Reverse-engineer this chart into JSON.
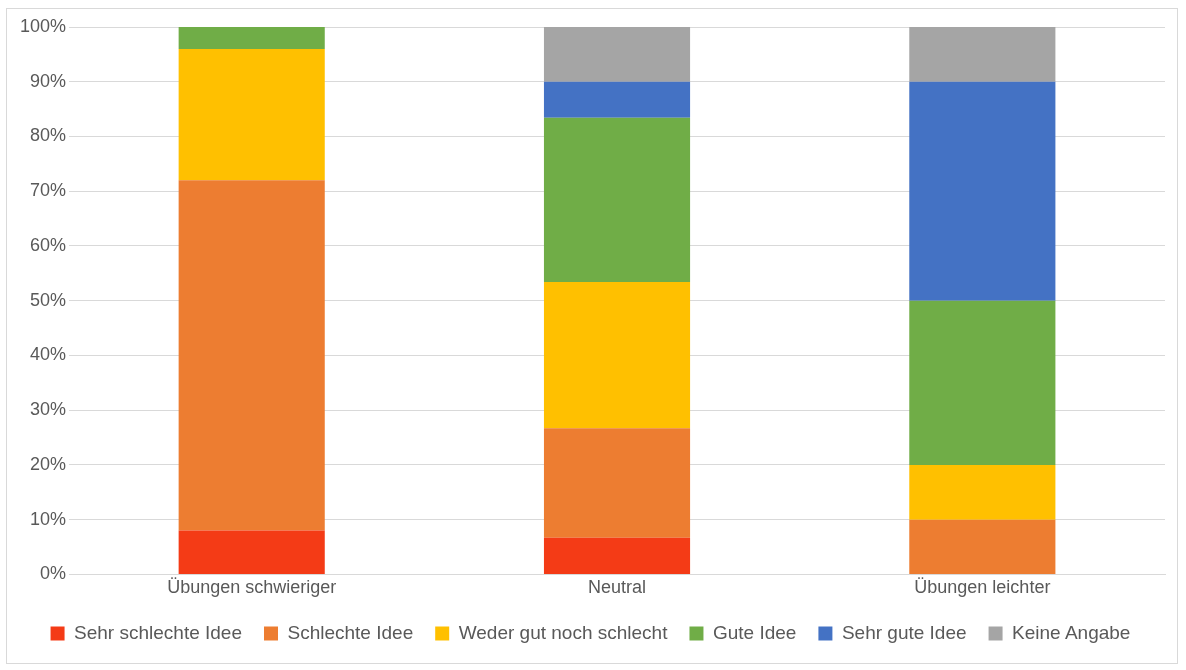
{
  "chart_data": {
    "type": "bar",
    "stacked": true,
    "categories": [
      "Übungen schwieriger",
      "Neutral",
      "Übungen leichter"
    ],
    "series": [
      {
        "name": "Sehr schlechte Idee",
        "color": "#f43b16",
        "values": [
          8,
          6.7,
          0
        ]
      },
      {
        "name": "Schlechte Idee",
        "color": "#ed7d31",
        "values": [
          64,
          20,
          10
        ]
      },
      {
        "name": "Weder gut noch schlecht",
        "color": "#ffc000",
        "values": [
          24,
          26.7,
          10
        ]
      },
      {
        "name": "Gute Idee",
        "color": "#70ad47",
        "values": [
          4,
          30,
          30
        ]
      },
      {
        "name": "Sehr gute Idee",
        "color": "#4472c4",
        "values": [
          0,
          6.6,
          40
        ]
      },
      {
        "name": "Keine Angabe",
        "color": "#a5a5a5",
        "values": [
          0,
          10,
          10
        ]
      }
    ],
    "ylim": [
      0,
      100
    ],
    "yticks": [
      {
        "value": 0,
        "label": "0%"
      },
      {
        "value": 10,
        "label": "10%"
      },
      {
        "value": 20,
        "label": "20%"
      },
      {
        "value": 30,
        "label": "30%"
      },
      {
        "value": 40,
        "label": "40%"
      },
      {
        "value": 50,
        "label": "50%"
      },
      {
        "value": 60,
        "label": "60%"
      },
      {
        "value": 70,
        "label": "70%"
      },
      {
        "value": 80,
        "label": "80%"
      },
      {
        "value": 90,
        "label": "90%"
      },
      {
        "value": 100,
        "label": "100%"
      }
    ],
    "grid": "y",
    "legend": "bottom"
  }
}
